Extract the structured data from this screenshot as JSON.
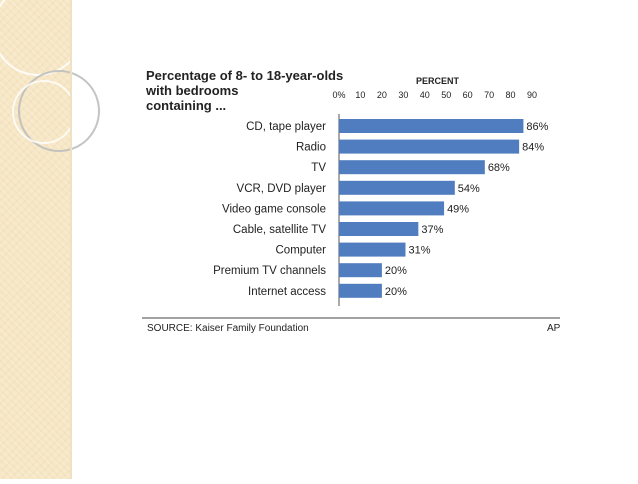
{
  "chart_data": {
    "type": "bar",
    "orientation": "horizontal",
    "title_lines": [
      "Percentage of  8- to 18-year-olds",
      "with bedrooms",
      "containing ..."
    ],
    "axis_title": "PERCENT",
    "x_ticks": [
      "0%",
      "10",
      "20",
      "30",
      "40",
      "50",
      "60",
      "70",
      "80",
      "90"
    ],
    "x_tick_values": [
      0,
      10,
      20,
      30,
      40,
      50,
      60,
      70,
      80,
      90
    ],
    "xlim": [
      0,
      90
    ],
    "categories": [
      "CD, tape player",
      "Radio",
      "TV",
      "VCR, DVD player",
      "Video game console",
      "Cable, satellite TV",
      "Computer",
      "Premium TV channels",
      "Internet access"
    ],
    "values": [
      86,
      84,
      68,
      54,
      49,
      37,
      31,
      20,
      20
    ],
    "value_labels": [
      "86%",
      "84%",
      "68%",
      "54%",
      "49%",
      "37%",
      "31%",
      "20%",
      "20%"
    ],
    "source": "SOURCE: Kaiser Family Foundation",
    "credit": "AP",
    "bar_color": "#4f7dbf",
    "grid": false
  }
}
